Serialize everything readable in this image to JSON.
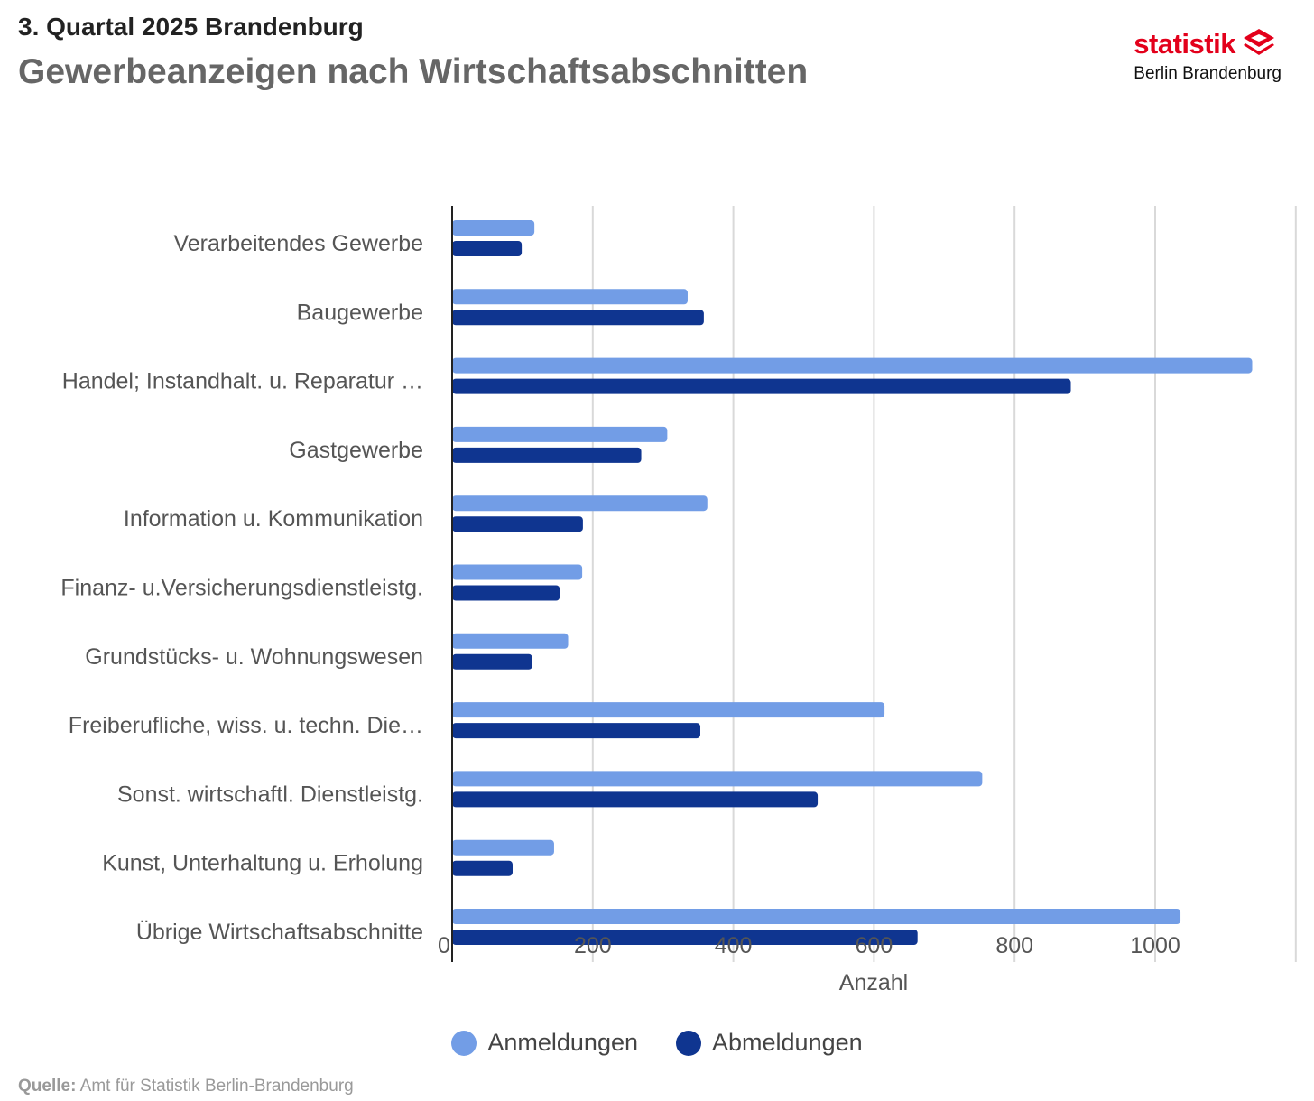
{
  "header": {
    "subtitle": "3. Quartal 2025 Brandenburg",
    "title": "Gewerbeanzeigen nach Wirtschaftsabschnitten"
  },
  "logo": {
    "word": "statistik",
    "sub": "Berlin Brandenburg"
  },
  "colors": {
    "anmeldungen": "#729de6",
    "abmeldungen": "#0f3590",
    "grid": "#d9d9d9",
    "axis": "#222222"
  },
  "legend": {
    "anmeldungen": "Anmeldungen",
    "abmeldungen": "Abmeldungen"
  },
  "source": {
    "label": "Quelle:",
    "text": "Amt für Statistik Berlin-Brandenburg"
  },
  "chart_data": {
    "type": "bar",
    "orientation": "horizontal",
    "title": "Gewerbeanzeigen nach Wirtschaftsabschnitten",
    "xlabel": "Anzahl",
    "ylabel": "",
    "xlim": [
      0,
      1200
    ],
    "xticks": [
      0,
      200,
      400,
      600,
      800,
      1000
    ],
    "grid": true,
    "legend_position": "bottom",
    "categories": [
      "Verarbeitendes Gewerbe",
      "Baugewerbe",
      "Handel; Instandhalt. u. Reparatur …",
      "Gastgewerbe",
      "Information u. Kommunikation",
      "Finanz- u.Versicherungsdienstleistg.",
      "Grundstücks- u. Wohnungswesen",
      "Freiberufliche, wiss. u. techn. Die…",
      "Sonst. wirtschaftl. Dienstleistg.",
      "Kunst, Unterhaltung u. Erholung",
      "Übrige Wirtschaftsabschnitte"
    ],
    "series": [
      {
        "name": "Anmeldungen",
        "values": [
          117,
          335,
          1138,
          306,
          363,
          185,
          165,
          615,
          754,
          145,
          1036
        ]
      },
      {
        "name": "Abmeldungen",
        "values": [
          99,
          358,
          880,
          269,
          186,
          153,
          114,
          353,
          520,
          86,
          662
        ]
      }
    ]
  }
}
